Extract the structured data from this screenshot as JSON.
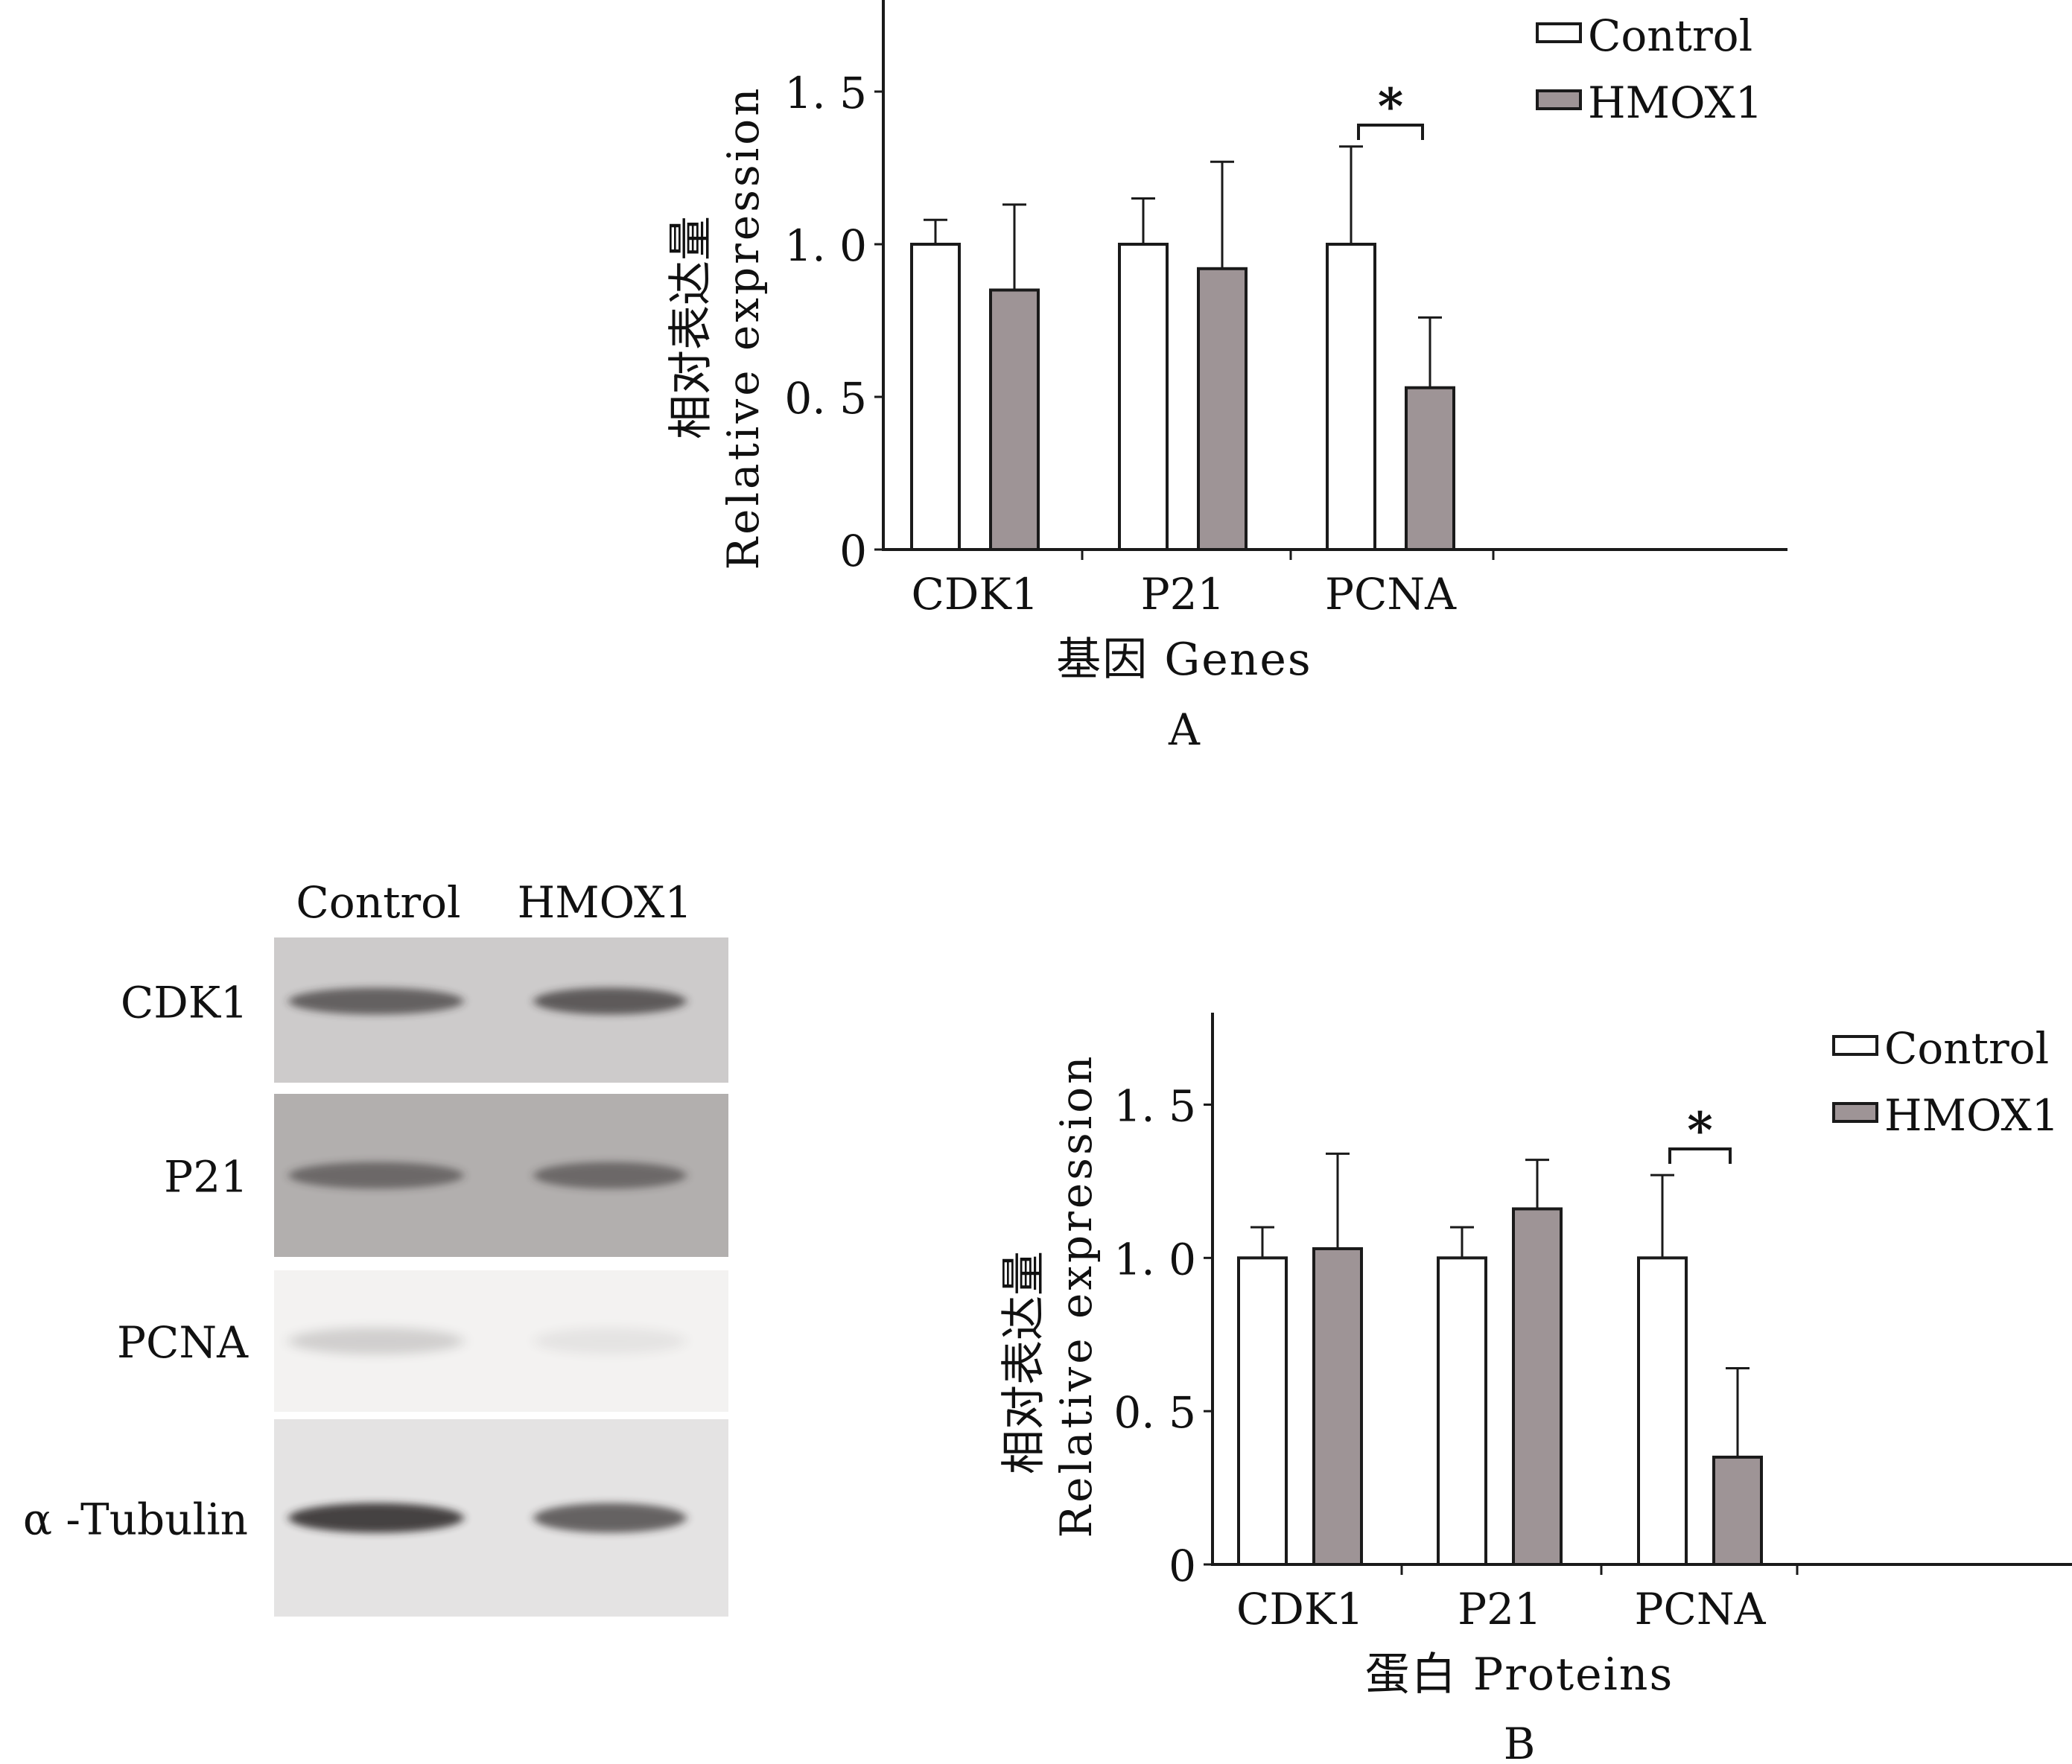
{
  "chart_data": [
    {
      "type": "bar",
      "panel_label": "A",
      "ylabel_cn": "相对表达量",
      "ylabel_en": "Relative expression",
      "xlabel": "基因 Genes",
      "categories": [
        "CDK1",
        "P21",
        "PCNA"
      ],
      "ylim": [
        0,
        1.8
      ],
      "yticks": [
        "0",
        "0. 5",
        "1. 0",
        "1. 5"
      ],
      "series": [
        {
          "name": "Control",
          "values": [
            1.0,
            1.0,
            1.0
          ],
          "errors": [
            0.08,
            0.15,
            0.32
          ],
          "color": "#ffffff"
        },
        {
          "name": "HMOX1",
          "values": [
            0.85,
            0.92,
            0.53
          ],
          "errors": [
            0.28,
            0.35,
            0.23
          ],
          "color": "#9e9496"
        }
      ],
      "annotations": [
        {
          "text": "*",
          "category": "PCNA"
        }
      ]
    },
    {
      "type": "bar",
      "panel_label": "B",
      "ylabel_cn": "相对表达量",
      "ylabel_en": "Relative expression",
      "xlabel": "蛋白 Proteins",
      "categories": [
        "CDK1",
        "P21",
        "PCNA"
      ],
      "ylim": [
        0,
        1.8
      ],
      "yticks": [
        "0",
        "0. 5",
        "1. 0",
        "1. 5"
      ],
      "series": [
        {
          "name": "Control",
          "values": [
            1.0,
            1.0,
            1.0
          ],
          "errors": [
            0.1,
            0.1,
            0.27
          ],
          "color": "#ffffff"
        },
        {
          "name": "HMOX1",
          "values": [
            1.03,
            1.16,
            0.35
          ],
          "errors": [
            0.31,
            0.16,
            0.29
          ],
          "color": "#9e9496"
        }
      ],
      "annotations": [
        {
          "text": "*",
          "category": "PCNA"
        }
      ]
    }
  ],
  "western_blot": {
    "lanes": [
      "Control",
      "HMOX1"
    ],
    "rows": [
      {
        "label": "CDK1",
        "intensity": [
          0.75,
          0.8
        ]
      },
      {
        "label": "P21",
        "intensity": [
          0.6,
          0.6
        ]
      },
      {
        "label": "PCNA",
        "intensity": [
          0.2,
          0.05
        ]
      },
      {
        "label": "α -Tubulin",
        "intensity": [
          1.0,
          0.8
        ]
      }
    ]
  }
}
